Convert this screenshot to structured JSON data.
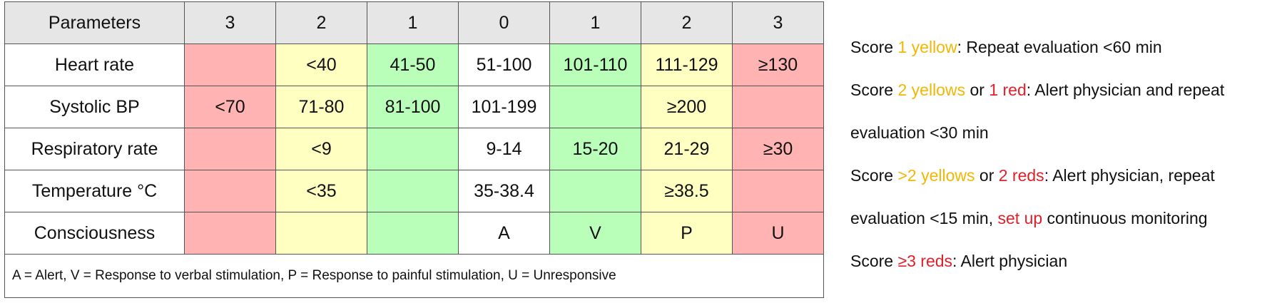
{
  "table": {
    "header": [
      "Parameters",
      "3",
      "2",
      "1",
      "0",
      "1",
      "2",
      "3"
    ],
    "header_color": "#e6e6e6",
    "column_colors": [
      "#ffb3b3",
      "#ffffc2",
      "#b9ffb9",
      "#ffffff",
      "#b9ffb9",
      "#ffffc2",
      "#ffb3b3"
    ],
    "rows": [
      {
        "label": "Heart rate",
        "cells": [
          null,
          "<40",
          "41-50",
          "51-100",
          "101-110",
          "111-129",
          "≥130"
        ]
      },
      {
        "label": "Systolic BP",
        "cells": [
          "<70",
          "71-80",
          "81-100",
          "101-199",
          null,
          "≥200",
          null
        ]
      },
      {
        "label": "Respiratory rate",
        "cells": [
          null,
          "<9",
          null,
          "9-14",
          "15-20",
          "21-29",
          "≥30"
        ]
      },
      {
        "label": "Temperature °C",
        "cells": [
          null,
          "<35",
          null,
          "35-38.4",
          null,
          "≥38.5",
          null
        ]
      },
      {
        "label": "Consciousness",
        "cells": [
          null,
          null,
          null,
          "A",
          "V",
          "P",
          "U"
        ]
      }
    ],
    "footnote": "A = Alert, V = Response to verbal stimulation, P = Response to painful stimulation, U = Unresponsive"
  },
  "rules": [
    {
      "segments": [
        {
          "text": "Score "
        },
        {
          "text": "1 yellow",
          "color": "#f2b705"
        },
        {
          "text": ":  Repeat evaluation <60 min"
        }
      ]
    },
    {
      "segments": [
        {
          "text": "Score "
        },
        {
          "text": "2 yellows",
          "color": "#f2b705"
        },
        {
          "text": " or "
        },
        {
          "text": "1 red",
          "color": "#e0202a"
        },
        {
          "text": ":  Alert physician and repeat evaluation <30 min"
        }
      ]
    },
    {
      "segments": [
        {
          "text": "Score "
        },
        {
          "text": ">2 yellows",
          "color": "#f2b705"
        },
        {
          "text": " or "
        },
        {
          "text": "2 reds",
          "color": "#e0202a"
        },
        {
          "text": ":  Alert physician, repeat evaluation <15 min, "
        },
        {
          "text": "set up",
          "color": "#e0202a"
        },
        {
          "text": " continuous monitoring"
        }
      ]
    },
    {
      "segments": [
        {
          "text": "Score "
        },
        {
          "text": "≥3 reds",
          "color": "#e0202a"
        },
        {
          "text": ":  Alert physician"
        }
      ]
    }
  ]
}
